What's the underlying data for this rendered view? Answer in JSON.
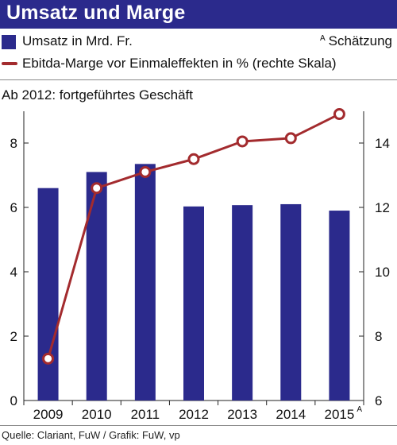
{
  "title": "Umsatz und Marge",
  "legend": {
    "bar_label": "Umsatz in Mrd. Fr.",
    "line_label": "Ebitda-Marge vor Einmaleffekten in % (rechte Skala)",
    "estimate_marker": "A",
    "estimate_label": "Schätzung"
  },
  "subtitle": "Ab 2012: fortgeführtes Geschäft",
  "source": "Quelle: Clariant, FuW / Grafik: FuW, vp",
  "colors": {
    "bar": "#2b2a8c",
    "line": "#a32b2e",
    "marker_fill": "#ffffff",
    "title_background": "#2b2a8c"
  },
  "chart_data": {
    "type": "bar",
    "categories": [
      "2009",
      "2010",
      "2011",
      "2012",
      "2013",
      "2014",
      "2015"
    ],
    "category_marks": [
      "",
      "",
      "",
      "",
      "",
      "",
      "A"
    ],
    "series": [
      {
        "name": "Umsatz in Mrd. Fr.",
        "type": "bar",
        "axis": "left",
        "values": [
          6.6,
          7.1,
          7.35,
          6.03,
          6.07,
          6.1,
          5.9
        ]
      },
      {
        "name": "Ebitda-Marge vor Einmaleffekten in % (rechte Skala)",
        "type": "line",
        "axis": "right",
        "values": [
          7.3,
          12.6,
          13.1,
          13.5,
          14.05,
          14.15,
          14.9
        ]
      }
    ],
    "y_left": {
      "min": 0,
      "max": 9,
      "ticks": [
        0,
        2,
        4,
        6,
        8
      ]
    },
    "y_right": {
      "min": 6,
      "max": 15.5,
      "ticks": [
        6,
        8,
        10,
        12,
        14
      ]
    },
    "grid": false,
    "legend_position": "top-left"
  }
}
